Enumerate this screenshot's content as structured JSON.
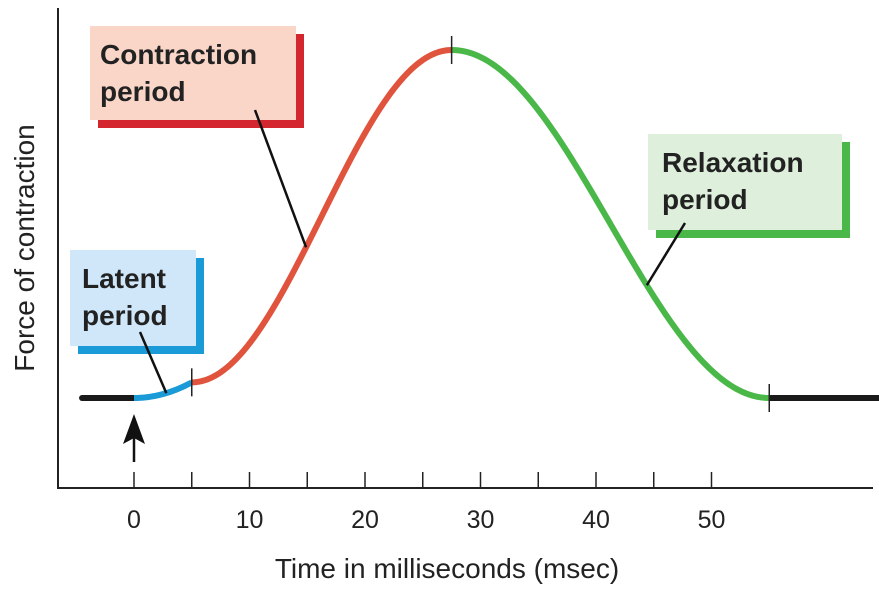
{
  "chart_data": {
    "type": "line",
    "title": "",
    "xlabel": "Time in milliseconds (msec)",
    "ylabel": "Force of contraction",
    "xlim": [
      -5,
      65
    ],
    "x_ticks": [
      0,
      10,
      20,
      30,
      40,
      50
    ],
    "x_minor_ticks": [
      5,
      15,
      25,
      35,
      45
    ],
    "ylim": [
      0,
      1
    ],
    "baseline_force": 0,
    "peak": {
      "time": 27.5,
      "force": 1
    },
    "stimulus_time": 0,
    "phases": [
      {
        "name": "Latent period",
        "start": 0,
        "end": 5,
        "color": "#1a9ad6",
        "label_lines": [
          "Latent",
          "period"
        ],
        "box_fill": "#cfe7f8",
        "box_edge": "#1a9ad6"
      },
      {
        "name": "Contraction period",
        "start": 5,
        "end": 27.5,
        "color": "#e0533c",
        "label_lines": [
          "Contraction",
          "period"
        ],
        "box_fill": "#f9d6c8",
        "box_edge": "#d4262e"
      },
      {
        "name": "Relaxation period",
        "start": 27.5,
        "end": 55,
        "color": "#4ab848",
        "label_lines": [
          "Relaxation",
          "period"
        ],
        "box_fill": "#def0dc",
        "box_edge": "#4ab848"
      }
    ],
    "baseline_segments": [
      {
        "start": -4.5,
        "end": 0,
        "color": "#1a1a1a"
      },
      {
        "start": 55,
        "end": 64.5,
        "color": "#1a1a1a"
      }
    ],
    "grid": false,
    "legend": "none"
  }
}
